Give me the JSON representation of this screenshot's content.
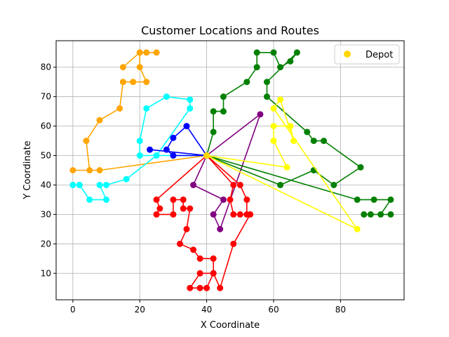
{
  "chart_data": {
    "type": "scatter",
    "title": "Customer Locations and Routes",
    "xlabel": "X Coordinate",
    "ylabel": "Y Coordinate",
    "xlim": [
      -5,
      99
    ],
    "ylim": [
      1,
      89
    ],
    "x_ticks": [
      0,
      20,
      40,
      60,
      80
    ],
    "y_ticks": [
      10,
      20,
      30,
      40,
      50,
      60,
      70,
      80
    ],
    "grid": true,
    "legend_position": "top-right",
    "legend": [
      {
        "label": "Depot",
        "color": "#FFD700"
      }
    ],
    "depot": {
      "x": 40,
      "y": 50
    },
    "routes": [
      {
        "color": "#FFA500",
        "points": [
          [
            40,
            50
          ],
          [
            8,
            45
          ],
          [
            0,
            45
          ],
          [
            5,
            45
          ],
          [
            4,
            55
          ],
          [
            8,
            62
          ],
          [
            14,
            66
          ],
          [
            15,
            75
          ],
          [
            18,
            75
          ],
          [
            22,
            75
          ],
          [
            20,
            80
          ],
          [
            20,
            85
          ],
          [
            22,
            85
          ],
          [
            25,
            85
          ],
          [
            20,
            85
          ],
          [
            15,
            80
          ]
        ]
      },
      {
        "color": "#00FFFF",
        "points": [
          [
            40,
            50
          ],
          [
            20,
            50
          ],
          [
            20,
            55
          ],
          [
            22,
            66
          ],
          [
            28,
            70
          ],
          [
            35,
            69
          ],
          [
            35,
            66
          ],
          [
            25,
            50
          ],
          [
            16,
            42
          ],
          [
            10,
            40
          ],
          [
            8,
            40
          ],
          [
            10,
            35
          ],
          [
            5,
            35
          ],
          [
            2,
            40
          ],
          [
            0,
            40
          ]
        ]
      },
      {
        "color": "#0000FF",
        "points": [
          [
            40,
            50
          ],
          [
            30,
            50
          ],
          [
            28,
            52
          ],
          [
            30,
            56
          ],
          [
            34,
            60
          ],
          [
            40,
            50
          ],
          [
            23,
            52
          ]
        ]
      },
      {
        "color": "#800080",
        "points": [
          [
            40,
            50
          ],
          [
            56,
            64
          ],
          [
            44,
            25
          ],
          [
            42,
            30
          ],
          [
            45,
            35
          ],
          [
            36,
            40
          ],
          [
            40,
            50
          ]
        ]
      },
      {
        "color": "#FF0000",
        "points": [
          [
            40,
            50
          ],
          [
            50,
            40
          ],
          [
            52,
            35
          ],
          [
            52,
            30
          ],
          [
            50,
            30
          ],
          [
            48,
            30
          ],
          [
            47,
            35
          ],
          [
            48,
            40
          ],
          [
            40,
            50
          ],
          [
            25,
            35
          ],
          [
            26,
            32
          ],
          [
            25,
            30
          ],
          [
            30,
            30
          ],
          [
            30,
            35
          ],
          [
            33,
            35
          ],
          [
            33,
            32
          ],
          [
            35,
            32
          ],
          [
            34,
            25
          ],
          [
            32,
            20
          ],
          [
            36,
            18
          ],
          [
            38,
            15
          ],
          [
            42,
            15
          ],
          [
            42,
            10
          ],
          [
            40,
            5
          ],
          [
            38,
            5
          ],
          [
            35,
            5
          ],
          [
            38,
            10
          ],
          [
            42,
            10
          ],
          [
            44,
            5
          ],
          [
            48,
            20
          ],
          [
            53,
            30
          ]
        ]
      },
      {
        "color": "#008000",
        "points": [
          [
            40,
            50
          ],
          [
            42,
            58
          ],
          [
            42,
            65
          ],
          [
            45,
            65
          ],
          [
            45,
            70
          ],
          [
            52,
            75
          ],
          [
            55,
            80
          ],
          [
            55,
            85
          ],
          [
            60,
            85
          ],
          [
            62,
            80
          ],
          [
            65,
            82
          ],
          [
            67,
            85
          ],
          [
            58,
            75
          ],
          [
            58,
            70
          ],
          [
            70,
            58
          ],
          [
            72,
            55
          ],
          [
            75,
            55
          ],
          [
            86,
            46
          ],
          [
            78,
            40
          ],
          [
            72,
            45
          ],
          [
            62,
            40
          ],
          [
            40,
            50
          ],
          [
            85,
            35
          ],
          [
            90,
            35
          ],
          [
            95,
            35
          ],
          [
            92,
            30
          ],
          [
            95,
            30
          ],
          [
            87,
            30
          ],
          [
            89,
            30
          ]
        ]
      },
      {
        "color": "#FFFF00",
        "points": [
          [
            40,
            50
          ],
          [
            64,
            46
          ],
          [
            60,
            55
          ],
          [
            60,
            60
          ],
          [
            65,
            60
          ],
          [
            66,
            55
          ],
          [
            62,
            69
          ],
          [
            60,
            66
          ],
          [
            85,
            25
          ],
          [
            40,
            50
          ]
        ]
      }
    ]
  }
}
